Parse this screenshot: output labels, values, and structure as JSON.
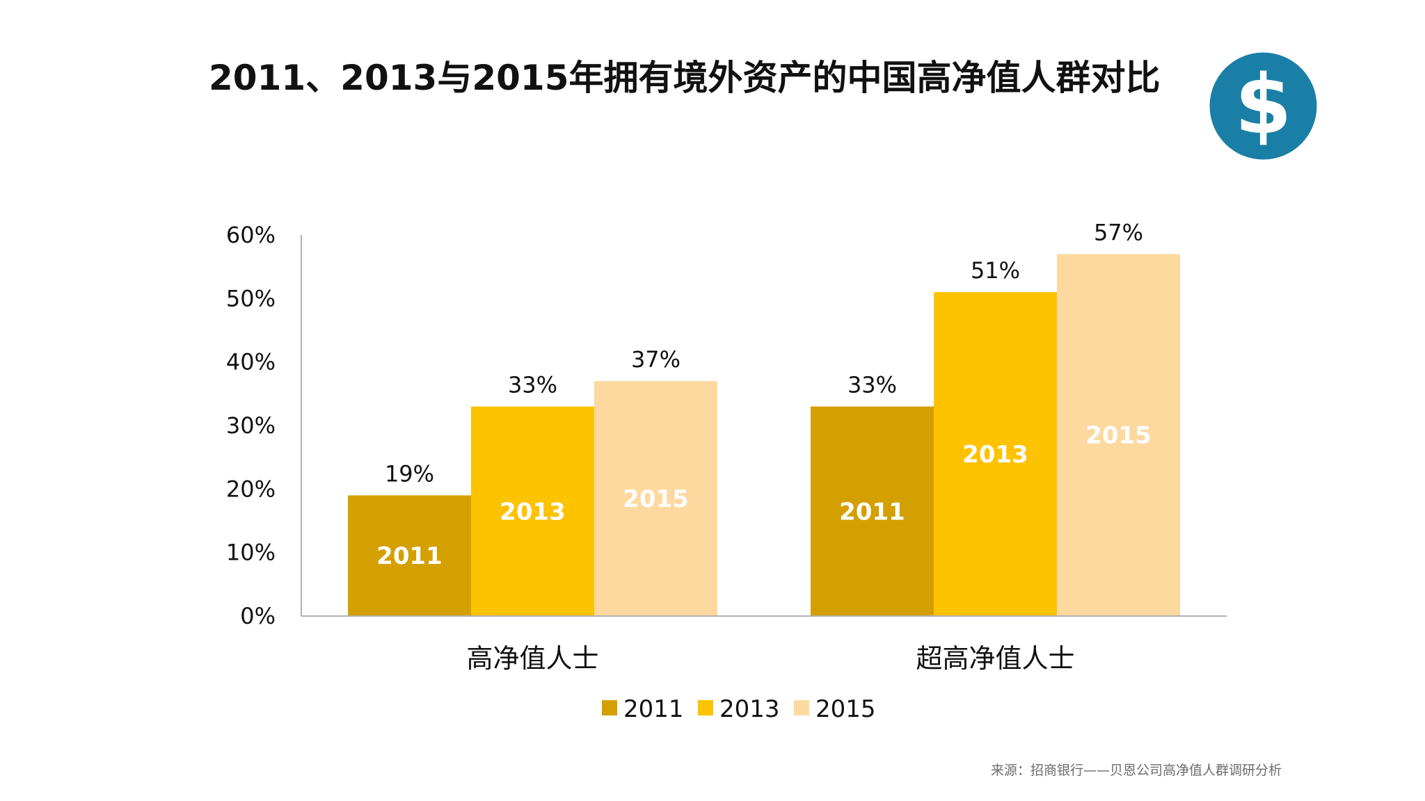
{
  "title": "2011、2013与2015年拥有境外资产的中国高净值人群对比",
  "source": "来源：招商银行——贝恩公司高净值人群调研分析",
  "badge": {
    "symbol": "$",
    "icon": "dollar-icon",
    "color": "#1a7fa6"
  },
  "colors": {
    "2011": "#d4a000",
    "2013": "#fdc200",
    "2015": "#fdd9a0"
  },
  "chart_data": {
    "type": "bar",
    "categories": [
      "高净值人士",
      "超高净值人士"
    ],
    "series": [
      {
        "name": "2011",
        "values": [
          19,
          33
        ],
        "value_labels": [
          "19%",
          "33%"
        ]
      },
      {
        "name": "2013",
        "values": [
          33,
          51
        ],
        "value_labels": [
          "33%",
          "51%"
        ]
      },
      {
        "name": "2015",
        "values": [
          37,
          57
        ],
        "value_labels": [
          "37%",
          "57%"
        ]
      }
    ],
    "ylim": [
      0,
      60
    ],
    "yticks": [
      0,
      10,
      20,
      30,
      40,
      50,
      60
    ],
    "ytick_labels": [
      "0%",
      "10%",
      "20%",
      "30%",
      "40%",
      "50%",
      "60%"
    ],
    "legend": [
      "2011",
      "2013",
      "2015"
    ],
    "legend_position": "bottom",
    "grid": false
  }
}
